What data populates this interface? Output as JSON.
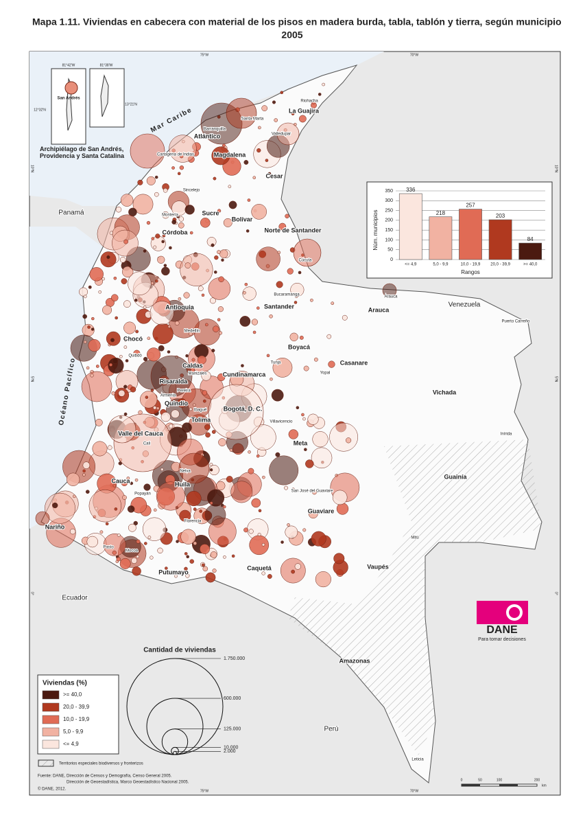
{
  "title": "Mapa 1.11. Viviendas en cabecera con material de los pisos en madera burda, tabla, tablón y tierra, según municipio",
  "title_year": "2005",
  "frame_coords": [
    "75°W",
    "70°W",
    "75°W",
    "70°W",
    "10°N",
    "5°N",
    "0°",
    "10°N",
    "5°N",
    "0°"
  ],
  "seas": [
    "Mar Caribe",
    "Océano Pacífico"
  ],
  "map_labels": [
    "La Guajira",
    "Riohacha",
    "Santa Marta",
    "Barranquilla",
    "Atlántico",
    "Magdalena",
    "Cartagena de Indias",
    "Valledupar",
    "Cesar",
    "Sincelejo",
    "Sucre",
    "Montería",
    "Bolívar",
    "Córdoba",
    "Norte de Santander",
    "Cúcuta",
    "Bucaramanga",
    "Santander",
    "Arauca",
    "Arauca",
    "Venezuela",
    "Antioquia",
    "Medellín",
    "Chocó",
    "Quibdó",
    "Boyacá",
    "Tunja",
    "Casanare",
    "Yopal",
    "Puerto Carreño",
    "Caldas",
    "Manizales",
    "Risaralda",
    "Pereira",
    "Cundinamarca",
    "Armenia",
    "Quindío",
    "Vichada",
    "Ibagué",
    "Tolima",
    "Bogotá, D. C.",
    "Villavicencio",
    "Panamá",
    "Valle del Cauca",
    "Cali",
    "Inírida",
    "Meta",
    "Neiva",
    "Guainía",
    "Cauca",
    "Popayán",
    "Huila",
    "San José del Guaviare",
    "Guaviare",
    "Nariño",
    "Florencia",
    "Pasto",
    "Mitú",
    "Mocoa",
    "Vaupés",
    "Caquetá",
    "Putumayo",
    "Ecuador",
    "Amazonas",
    "Perú",
    "Leticia"
  ],
  "inset": {
    "caption": "Archipiélago de San Andrés, Providencia y Santa Catalina",
    "island": "San Andrés",
    "coords": [
      "81°42'W",
      "81°38'W",
      "12°32'N",
      "13°21'N"
    ]
  },
  "chart_data": {
    "type": "bar",
    "categories": [
      "<= 4,9",
      "5,0 - 9,9",
      "10,0 - 19,9",
      "20,0 - 39,9",
      ">= 40,0"
    ],
    "values": [
      336,
      218,
      257,
      203,
      84
    ],
    "colors": [
      "#fbe6de",
      "#f1b2a2",
      "#e06b55",
      "#b0391f",
      "#4b1a10"
    ],
    "x_label": "Rangos",
    "y_label": "Núm. municipios",
    "ylim": [
      0,
      350
    ],
    "yticks": [
      0,
      50,
      100,
      150,
      200,
      250,
      300,
      350
    ],
    "grid": true
  },
  "bubble_legend": {
    "title": "Cantidad de viviendas",
    "sizes": [
      {
        "value": 1750000,
        "label": "1.750.000"
      },
      {
        "value": 600000,
        "label": "600.000"
      },
      {
        "value": 125000,
        "label": "125.000"
      },
      {
        "value": 10000,
        "label": "10.000"
      },
      {
        "value": 2000,
        "label": "2.000"
      }
    ]
  },
  "color_legend": {
    "title": "Viviendas (%)",
    "items": [
      {
        "label": ">= 40,0",
        "color": "#4b1a10"
      },
      {
        "label": "20,0 - 39,9",
        "color": "#b0391f"
      },
      {
        "label": "10,0 - 19,9",
        "color": "#e06b55"
      },
      {
        "label": "5,0 - 9,9",
        "color": "#f1b2a2"
      },
      {
        "label": "<= 4,9",
        "color": "#fbe6de"
      }
    ]
  },
  "hatch_note": "Territorios especiales biodiversos y fronterizos",
  "sources": [
    "Fuente: DANE, Dirección de Censos y Demografía, Censo General 2005.",
    "Dirección de Geoestadística, Marco Geoestadístico Nacional 2005.",
    "© DANE, 2012."
  ],
  "scale": [
    "0",
    "50",
    "100",
    "200",
    "km"
  ],
  "logo": {
    "name": "DANE",
    "slogan": "Para tomar decisiones"
  }
}
